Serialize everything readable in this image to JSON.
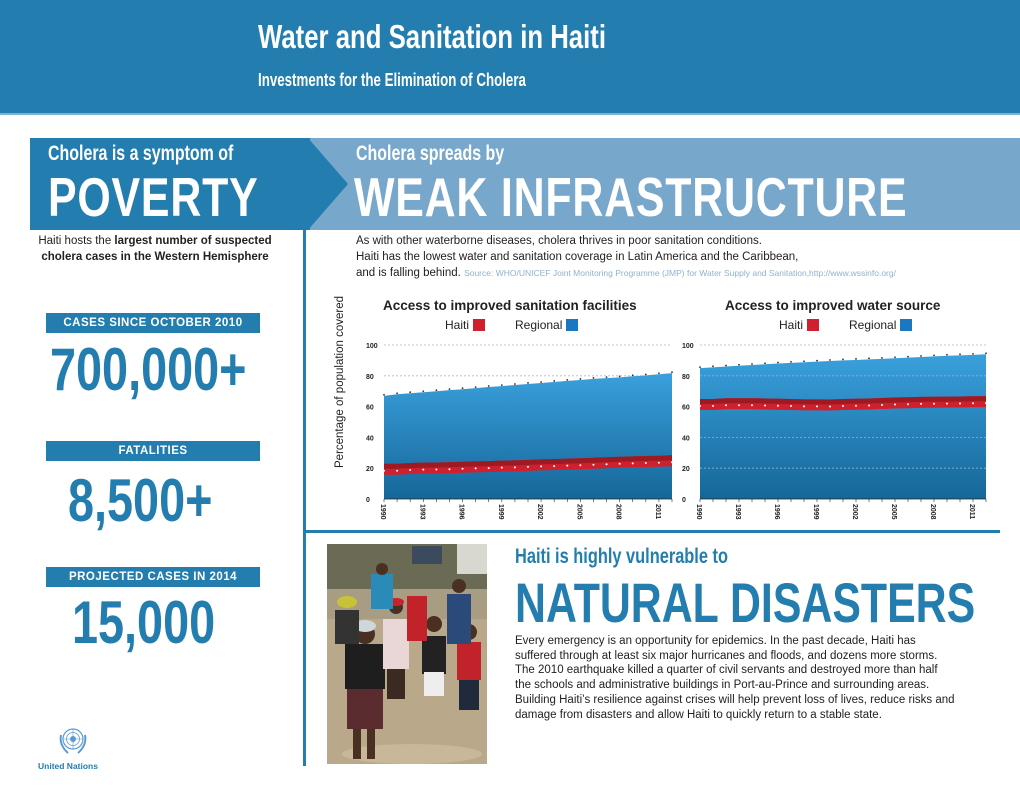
{
  "header": {
    "title": "Water and Sanitation in Haiti",
    "subtitle": "Investments for the Elimination of Cholera"
  },
  "poverty": {
    "small": "Cholera is a symptom of",
    "big": "POVERTY",
    "text_pre": "Haiti hosts the ",
    "text_bold": "largest number of suspected cholera cases in the Western Hemisphere"
  },
  "infrastructure": {
    "small": "Cholera spreads by",
    "big": "WEAK INFRASTRUCTURE",
    "line1": "As with other waterborne diseases, cholera thrives in poor sanitation conditions.",
    "line2": "Haiti has the lowest water and sanitation coverage in Latin America and the Caribbean,",
    "line3": "and is falling behind.",
    "source": "Source: WHO/UNICEF Joint Monitoring Programme (JMP) for Water Supply and Sanitation,http://www.wssinfo.org/"
  },
  "stats": [
    {
      "label": "CASES SINCE OCTOBER 2010",
      "value": "700,000+"
    },
    {
      "label": "FATALITIES",
      "value": "8,500+"
    },
    {
      "label": "PROJECTED CASES IN 2014",
      "value": "15,000"
    }
  ],
  "colors": {
    "brand_blue": "#237daf",
    "light_blue": "#78a7cc",
    "haiti_red": "#d0202e",
    "regional_blue": "#1a78c2"
  },
  "chart_data": [
    {
      "type": "area",
      "title": "Access to improved sanitation facilities",
      "ylabel": "Percentage of population covered",
      "xlabel": "",
      "ylim": [
        0,
        100
      ],
      "yticks": [
        "0",
        "20",
        "40",
        "60",
        "80",
        "100"
      ],
      "grid": true,
      "legend": "top-center",
      "x": [
        1990,
        1991,
        1992,
        1993,
        1994,
        1995,
        1996,
        1997,
        1998,
        1999,
        2000,
        2001,
        2002,
        2003,
        2004,
        2005,
        2006,
        2007,
        2008,
        2009,
        2010,
        2011,
        2012
      ],
      "xtick_labels": [
        "1990",
        "1993",
        "1996",
        "1999",
        "2002",
        "2005",
        "2008",
        "2011"
      ],
      "series": [
        {
          "name": "Haiti",
          "color": "#d0202e",
          "values": [
            19,
            19,
            19.5,
            19.7,
            19.8,
            20,
            20.3,
            20.5,
            20.7,
            21,
            21.2,
            21.5,
            21.8,
            22,
            22.3,
            22.6,
            22.9,
            23.2,
            23.5,
            23.8,
            24,
            24.2,
            24.5
          ]
        },
        {
          "name": "Regional",
          "color": "#1a78c2",
          "values": [
            67,
            68,
            68.7,
            69.3,
            70,
            70.7,
            71.3,
            72,
            72.7,
            73.3,
            74,
            74.7,
            75.3,
            76,
            76.7,
            77.3,
            78,
            78.5,
            79,
            79.7,
            80.3,
            81,
            81.7
          ]
        }
      ]
    },
    {
      "type": "area",
      "title": "Access to improved water source",
      "ylabel": "",
      "xlabel": "",
      "ylim": [
        0,
        100
      ],
      "yticks": [
        "0",
        "20",
        "40",
        "60",
        "80",
        "100"
      ],
      "grid": true,
      "legend": "top-center",
      "x": [
        1990,
        1991,
        1992,
        1993,
        1994,
        1995,
        1996,
        1997,
        1998,
        1999,
        2000,
        2001,
        2002,
        2003,
        2004,
        2005,
        2006,
        2007,
        2008,
        2009,
        2010,
        2011,
        2012
      ],
      "xtick_labels": [
        "1990",
        "1993",
        "1996",
        "1999",
        "2002",
        "2005",
        "2008",
        "2011"
      ],
      "series": [
        {
          "name": "Haiti",
          "color": "#d0202e",
          "values": [
            61,
            61,
            61.5,
            61.5,
            61.5,
            61.4,
            61.2,
            61,
            60.8,
            60.8,
            60.7,
            61,
            61.2,
            61.4,
            61.7,
            62,
            62.2,
            62.4,
            62.5,
            62.6,
            62.7,
            62.8,
            62.9
          ]
        },
        {
          "name": "Regional",
          "color": "#1a78c2",
          "values": [
            85,
            85.5,
            86,
            86.5,
            87,
            87.5,
            88,
            88.4,
            88.8,
            89.2,
            89.6,
            90,
            90.3,
            90.7,
            91,
            91.4,
            91.8,
            92.2,
            92.6,
            93,
            93.3,
            93.6,
            94
          ]
        }
      ]
    }
  ],
  "disasters": {
    "small": "Haiti is highly vulnerable to",
    "big": "NATURAL DISASTERS",
    "text": "Every emergency is an opportunity for epidemics. In the past decade, Haiti has suffered through at least six major hurricanes and floods, and dozens more storms. The 2010 earthquake killed a quarter of civil servants and destroyed more than half the schools and administrative buildings in Port-au-Prince and surrounding areas. Building Haiti’s resilience against crises will help prevent loss of lives, reduce risks and damage from disasters and allow Haiti to quickly return to a stable state."
  },
  "footer": {
    "logo_icon": "un-emblem-icon",
    "org": "United Nations"
  }
}
